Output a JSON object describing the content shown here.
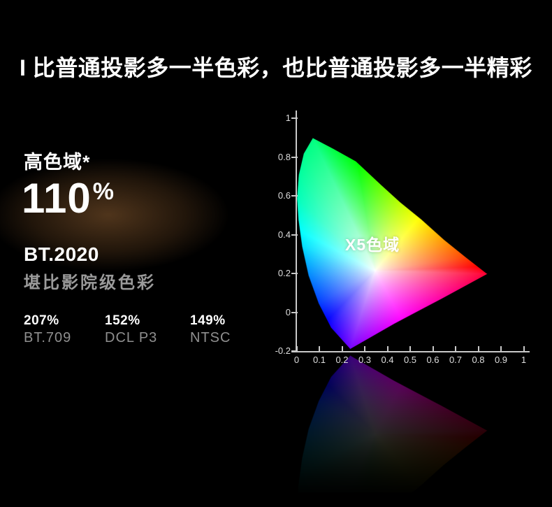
{
  "title": "I 比普通投影多一半色彩，也比普通投影多一半精彩",
  "left_panel": {
    "gamut_label": "高色域*",
    "gamut_value": "110",
    "gamut_unit": "%",
    "standard": "BT.2020",
    "subtitle": "堪比影院级色彩",
    "stats": [
      {
        "percent": "207%",
        "name": "BT.709"
      },
      {
        "percent": "152%",
        "name": "DCL P3"
      },
      {
        "percent": "149%",
        "name": "NTSC"
      }
    ]
  },
  "colors": {
    "background": "#000000",
    "text_primary": "#ffffff",
    "text_secondary": "#9a9a9a",
    "stat_name_gray": "#8f8f8f",
    "axis": "#c9c9c9",
    "tick_label": "#dedede",
    "glow_warm": "#986535"
  },
  "chart_data": {
    "type": "area",
    "title": "X5色域 chromaticity gamut diagram (CIE-style horseshoe, fully colored spectrum fill with white point core and mirrored floor reflection)",
    "xlabel": "",
    "ylabel": "",
    "xlim": [
      0,
      1
    ],
    "ylim": [
      -0.2,
      1
    ],
    "x_ticks": [
      0,
      0.1,
      0.2,
      0.3,
      0.4,
      0.5,
      0.6,
      0.7,
      0.8,
      0.9,
      1
    ],
    "y_ticks": [
      1,
      0.8,
      0.6,
      0.4,
      0.2,
      0,
      -0.2
    ],
    "grid": false,
    "legend": false,
    "annotation": "X5色域",
    "white_point": [
      0.345,
      0.215
    ],
    "boundary_hue_points": [
      [
        0.07,
        0.9,
        150
      ],
      [
        0.16,
        0.845,
        136
      ],
      [
        0.26,
        0.78,
        122
      ],
      [
        0.37,
        0.66,
        96
      ],
      [
        0.455,
        0.57,
        76
      ],
      [
        0.55,
        0.48,
        58
      ],
      [
        0.65,
        0.375,
        36
      ],
      [
        0.745,
        0.285,
        16
      ],
      [
        0.84,
        0.198,
        -12
      ],
      [
        0.64,
        0.07,
        -38
      ],
      [
        0.43,
        -0.06,
        -64
      ],
      [
        0.235,
        -0.19,
        -92
      ],
      [
        0.15,
        -0.08,
        -114
      ],
      [
        0.095,
        0.045,
        -134
      ],
      [
        0.05,
        0.19,
        -152
      ],
      [
        0.022,
        0.34,
        -172
      ],
      [
        0.006,
        0.48,
        -186
      ],
      [
        0.0,
        0.59,
        -196
      ],
      [
        0.008,
        0.71,
        -202
      ],
      [
        0.03,
        0.82,
        -207
      ]
    ],
    "key_vertices": {
      "green_peak": [
        0.07,
        0.9
      ],
      "red_tip": [
        0.84,
        0.2
      ],
      "purple_tip": [
        0.23,
        -0.19
      ]
    }
  }
}
